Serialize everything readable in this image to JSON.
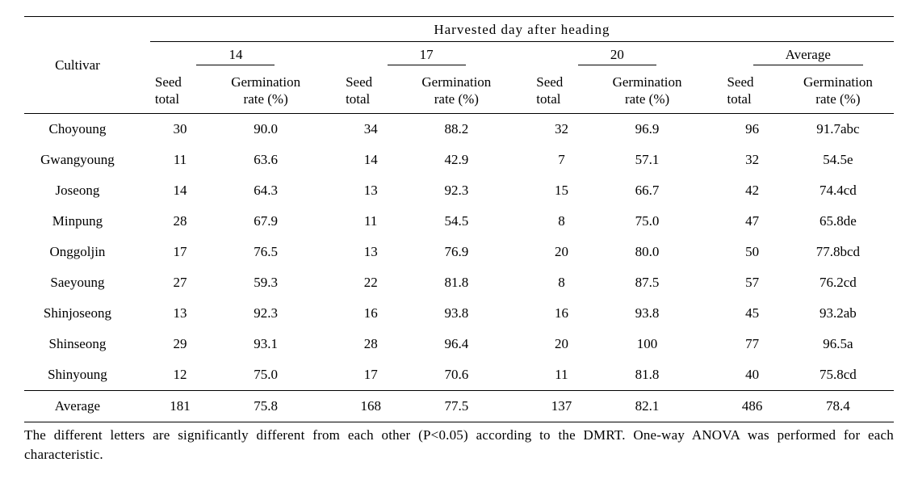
{
  "header": {
    "cultivar": "Cultivar",
    "super": "Harvested    day  after  heading",
    "groups": [
      "14",
      "17",
      "20",
      "Average"
    ],
    "sub_seed": "Seed\ntotal",
    "sub_germ": "Germination\nrate  (%)"
  },
  "rows": [
    {
      "name": "Choyoung",
      "d14_s": "30",
      "d14_g": "90.0",
      "d17_s": "34",
      "d17_g": "88.2",
      "d20_s": "32",
      "d20_g": "96.9",
      "avg_s": "96",
      "avg_g": "91.7abc"
    },
    {
      "name": "Gwangyoung",
      "d14_s": "11",
      "d14_g": "63.6",
      "d17_s": "14",
      "d17_g": "42.9",
      "d20_s": "7",
      "d20_g": "57.1",
      "avg_s": "32",
      "avg_g": "54.5e"
    },
    {
      "name": "Joseong",
      "d14_s": "14",
      "d14_g": "64.3",
      "d17_s": "13",
      "d17_g": "92.3",
      "d20_s": "15",
      "d20_g": "66.7",
      "avg_s": "42",
      "avg_g": "74.4cd"
    },
    {
      "name": "Minpung",
      "d14_s": "28",
      "d14_g": "67.9",
      "d17_s": "11",
      "d17_g": "54.5",
      "d20_s": "8",
      "d20_g": "75.0",
      "avg_s": "47",
      "avg_g": "65.8de"
    },
    {
      "name": "Onggoljin",
      "d14_s": "17",
      "d14_g": "76.5",
      "d17_s": "13",
      "d17_g": "76.9",
      "d20_s": "20",
      "d20_g": "80.0",
      "avg_s": "50",
      "avg_g": "77.8bcd"
    },
    {
      "name": "Saeyoung",
      "d14_s": "27",
      "d14_g": "59.3",
      "d17_s": "22",
      "d17_g": "81.8",
      "d20_s": "8",
      "d20_g": "87.5",
      "avg_s": "57",
      "avg_g": "76.2cd"
    },
    {
      "name": "Shinjoseong",
      "d14_s": "13",
      "d14_g": "92.3",
      "d17_s": "16",
      "d17_g": "93.8",
      "d20_s": "16",
      "d20_g": "93.8",
      "avg_s": "45",
      "avg_g": "93.2ab"
    },
    {
      "name": "Shinseong",
      "d14_s": "29",
      "d14_g": "93.1",
      "d17_s": "28",
      "d17_g": "96.4",
      "d20_s": "20",
      "d20_g": "100",
      "avg_s": "77",
      "avg_g": "96.5a"
    },
    {
      "name": "Shinyoung",
      "d14_s": "12",
      "d14_g": "75.0",
      "d17_s": "17",
      "d17_g": "70.6",
      "d20_s": "11",
      "d20_g": "81.8",
      "avg_s": "40",
      "avg_g": "75.8cd"
    }
  ],
  "average_row": {
    "name": "Average",
    "d14_s": "181",
    "d14_g": "75.8",
    "d17_s": "168",
    "d17_g": "77.5",
    "d20_s": "137",
    "d20_g": "82.1",
    "avg_s": "486",
    "avg_g": "78.4"
  },
  "footnote": "The  different  letters  are  significantly  different  from  each  other  (P<0.05)  according  to  the  DMRT.  One-way ANOVA  was  performed  for  each  characteristic."
}
